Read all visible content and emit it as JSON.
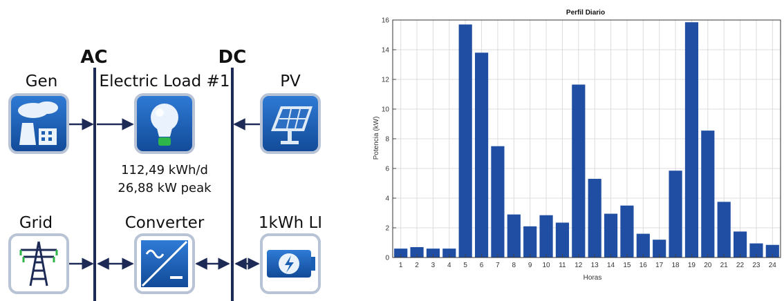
{
  "diagram": {
    "bus_ac": "AC",
    "bus_dc": "DC",
    "components": {
      "gen": "Gen",
      "load": "Electric Load #1",
      "pv": "PV",
      "grid": "Grid",
      "converter": "Converter",
      "battery": "1kWh LI"
    },
    "load_energy": "112,49 kWh/d",
    "load_peak": "26,88 kW peak",
    "icons": {
      "gen": "power-plant-icon",
      "load": "light-bulb-icon",
      "pv": "solar-panel-icon",
      "grid": "transmission-tower-icon",
      "converter": "inverter-icon",
      "battery": "battery-icon"
    },
    "colors": {
      "bus": "#1c2a55",
      "icon_bg": "#1a5fb4",
      "icon_border": "#b9c3d6"
    }
  },
  "chart_data": {
    "type": "bar",
    "title": "Perfil Diario",
    "xlabel": "Horas",
    "ylabel": "Potencia (kW)",
    "categories": [
      "1",
      "2",
      "3",
      "4",
      "5",
      "6",
      "7",
      "8",
      "9",
      "10",
      "11",
      "12",
      "13",
      "14",
      "15",
      "16",
      "17",
      "18",
      "19",
      "20",
      "21",
      "22",
      "23",
      "24"
    ],
    "values": [
      0.6,
      0.7,
      0.6,
      0.6,
      15.7,
      13.8,
      7.5,
      2.9,
      2.1,
      2.85,
      2.35,
      11.65,
      5.3,
      2.95,
      3.5,
      1.6,
      1.2,
      5.85,
      15.85,
      8.55,
      3.75,
      1.75,
      0.95,
      0.85
    ],
    "ylim": [
      0,
      16
    ],
    "yticks": [
      0,
      2,
      4,
      6,
      8,
      10,
      12,
      14,
      16
    ],
    "grid": true,
    "bar_color": "#1f4ea3"
  }
}
